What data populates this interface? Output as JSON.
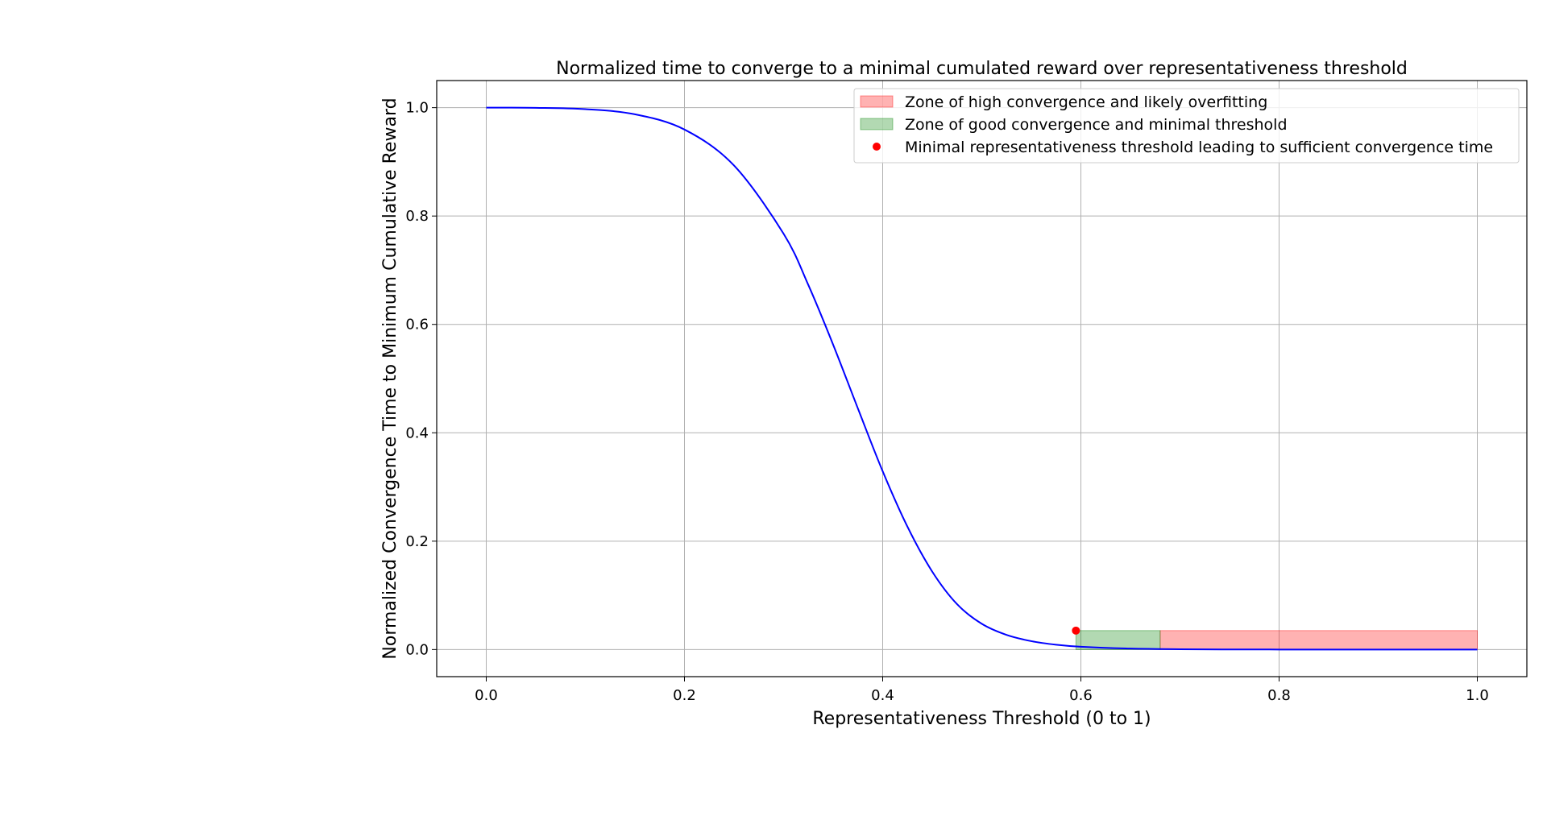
{
  "chart_data": {
    "type": "line",
    "title": "Normalized time to converge to a minimal cumulated reward over representativeness threshold",
    "xlabel": "Representativeness Threshold (0 to 1)",
    "ylabel": "Normalized Convergence Time to Minimum Cumulative Reward",
    "xlim": [
      -0.05,
      1.05
    ],
    "ylim": [
      -0.05,
      1.05
    ],
    "xticks": [
      0.0,
      0.2,
      0.4,
      0.6,
      0.8,
      1.0
    ],
    "xtick_labels": [
      "0.0",
      "0.2",
      "0.4",
      "0.6",
      "0.8",
      "1.0"
    ],
    "yticks": [
      0.0,
      0.2,
      0.4,
      0.6,
      0.8,
      1.0
    ],
    "ytick_labels": [
      "0.0",
      "0.2",
      "0.4",
      "0.6",
      "0.8",
      "1.0"
    ],
    "grid": true,
    "legend_position": "top-right",
    "series": [
      {
        "type": "line",
        "color": "#0000ff",
        "x": [
          0.0,
          0.05,
          0.1,
          0.15,
          0.2,
          0.25,
          0.3,
          0.325,
          0.35,
          0.375,
          0.4,
          0.425,
          0.45,
          0.475,
          0.5,
          0.525,
          0.55,
          0.575,
          0.6,
          0.65,
          0.7,
          0.75,
          0.8,
          0.85,
          0.9,
          0.95,
          1.0
        ],
        "y": [
          1.0,
          0.9997,
          0.9972,
          0.9877,
          0.9596,
          0.8932,
          0.7674,
          0.6727,
          0.5627,
          0.4449,
          0.329,
          0.2267,
          0.1438,
          0.0838,
          0.0475,
          0.027,
          0.0155,
          0.0089,
          0.0052,
          0.0018,
          0.0006,
          0.0002,
          7e-05,
          2e-05,
          0.0,
          0.0,
          0.0
        ]
      }
    ],
    "zones": [
      {
        "label": "Zone of high convergence and likely overfitting",
        "x_start": 0.68,
        "x_end": 1.0,
        "y_start": 0.0,
        "y_end": 0.035,
        "color": "#ff0000",
        "opacity": 0.3
      },
      {
        "label": "Zone of good convergence and minimal threshold",
        "x_start": 0.595,
        "x_end": 0.68,
        "y_start": 0.0,
        "y_end": 0.035,
        "color": "#008000",
        "opacity": 0.3
      }
    ],
    "markers": [
      {
        "label": "Minimal representativeness threshold leading to sufficient convergence time",
        "x": 0.595,
        "y": 0.035,
        "color": "#ff0000"
      }
    ]
  }
}
